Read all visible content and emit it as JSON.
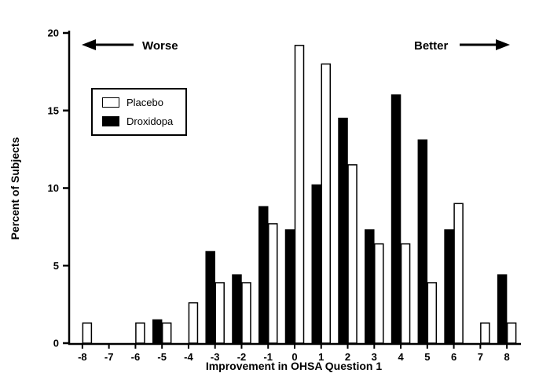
{
  "chart_data": {
    "type": "bar",
    "title": "",
    "xlabel": "Improvement in OHSA Question 1",
    "ylabel": "Percent of Subjects",
    "categories": [
      "-8",
      "-7",
      "-6",
      "-5",
      "-4",
      "-3",
      "-2",
      "-1",
      "0",
      "1",
      "2",
      "3",
      "4",
      "5",
      "6",
      "7",
      "8"
    ],
    "series": [
      {
        "name": "Droxidopa",
        "color": "#000000",
        "values": [
          0,
          0,
          0,
          1.5,
          0,
          5.9,
          4.4,
          8.8,
          7.3,
          10.2,
          14.5,
          7.3,
          16.0,
          13.1,
          7.3,
          0,
          4.4
        ]
      },
      {
        "name": "Placebo",
        "color": "#ffffff",
        "values": [
          1.3,
          0,
          1.3,
          1.3,
          2.6,
          3.9,
          3.9,
          7.7,
          19.2,
          18.0,
          11.5,
          6.4,
          6.4,
          3.9,
          9.0,
          1.3,
          1.3
        ]
      }
    ],
    "ylim": [
      0,
      20
    ],
    "yticks": [
      "0",
      "5",
      "10",
      "15",
      "20"
    ],
    "grid": false,
    "legend_position": "upper-left",
    "annotations": [
      {
        "text": "Worse",
        "arrow": "left"
      },
      {
        "text": "Better",
        "arrow": "right"
      }
    ]
  },
  "legend": {
    "items": [
      {
        "label": "Placebo",
        "color": "#ffffff"
      },
      {
        "label": "Droxidopa",
        "color": "#000000"
      }
    ]
  },
  "colors": {
    "axis": "#000000",
    "background": "#ffffff"
  }
}
